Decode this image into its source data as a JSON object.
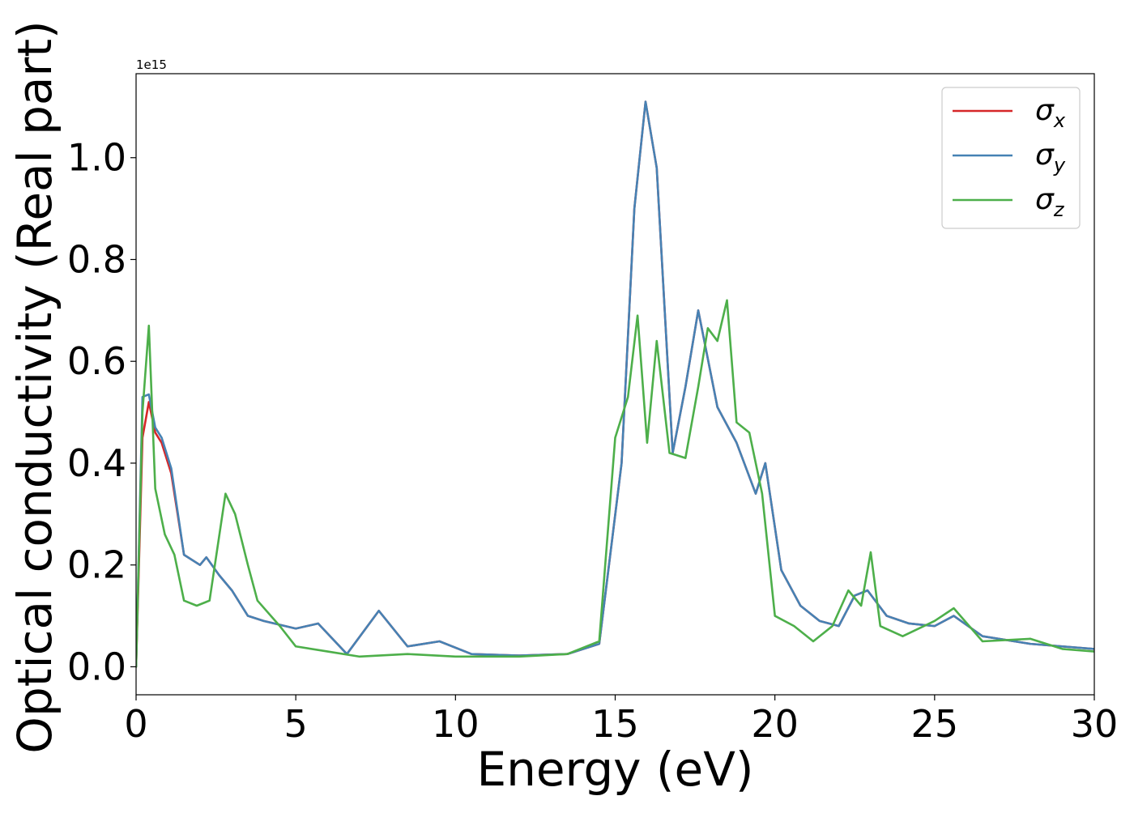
{
  "chart_data": {
    "type": "line",
    "title": "",
    "xlabel": "Energy (eV)",
    "ylabel": "Optical conductivity (Real part)",
    "y_offset_text": "1e15",
    "xlim": [
      0,
      30
    ],
    "ylim": [
      -0.055,
      1.165
    ],
    "y_scale_factor": 1000000000000000.0,
    "x_ticks": [
      0,
      5,
      10,
      15,
      20,
      25,
      30
    ],
    "x_tick_labels": [
      "0",
      "5",
      "10",
      "15",
      "20",
      "25",
      "30"
    ],
    "y_ticks": [
      0.0,
      0.2,
      0.4,
      0.6,
      0.8,
      1.0
    ],
    "y_tick_labels": [
      "0.0",
      "0.2",
      "0.4",
      "0.6",
      "0.8",
      "1.0"
    ],
    "grid": false,
    "legend": {
      "position": "top-right",
      "entries": [
        {
          "symbol": "σ",
          "sub": "x",
          "color": "#d62728"
        },
        {
          "symbol": "σ",
          "sub": "y",
          "color": "#4682b4"
        },
        {
          "symbol": "σ",
          "sub": "z",
          "color": "#4daf4a"
        }
      ]
    },
    "series": [
      {
        "key": "sigma_x",
        "color": "#d62728",
        "x": [
          0.0,
          0.2,
          0.4,
          0.6,
          0.8,
          1.1,
          1.5,
          2.0,
          2.2,
          2.6,
          3.0,
          3.5,
          4.0,
          5.0,
          5.7,
          6.6,
          7.6,
          8.5,
          9.5,
          10.5,
          12.0,
          13.5,
          14.5,
          15.2,
          15.6,
          15.95,
          16.3,
          16.8,
          17.2,
          17.6,
          18.2,
          18.8,
          19.4,
          19.7,
          20.2,
          20.8,
          21.4,
          22.0,
          22.5,
          22.9,
          23.5,
          24.2,
          25.0,
          25.6,
          26.5,
          28.0,
          30.0
        ],
        "y": [
          0.0,
          0.45,
          0.52,
          0.46,
          0.44,
          0.38,
          0.22,
          0.2,
          0.215,
          0.18,
          0.15,
          0.1,
          0.09,
          0.075,
          0.085,
          0.025,
          0.11,
          0.04,
          0.05,
          0.025,
          0.022,
          0.025,
          0.045,
          0.4,
          0.9,
          1.11,
          0.98,
          0.42,
          0.55,
          0.7,
          0.51,
          0.44,
          0.34,
          0.4,
          0.19,
          0.12,
          0.09,
          0.08,
          0.14,
          0.15,
          0.1,
          0.085,
          0.08,
          0.1,
          0.06,
          0.045,
          0.035
        ]
      },
      {
        "key": "sigma_y",
        "color": "#4682b4",
        "x": [
          0.0,
          0.2,
          0.4,
          0.6,
          0.8,
          1.1,
          1.5,
          2.0,
          2.2,
          2.6,
          3.0,
          3.5,
          4.0,
          5.0,
          5.7,
          6.6,
          7.6,
          8.5,
          9.5,
          10.5,
          12.0,
          13.5,
          14.5,
          15.2,
          15.6,
          15.95,
          16.3,
          16.8,
          17.2,
          17.6,
          18.2,
          18.8,
          19.4,
          19.7,
          20.2,
          20.8,
          21.4,
          22.0,
          22.5,
          22.9,
          23.5,
          24.2,
          25.0,
          25.6,
          26.5,
          28.0,
          30.0
        ],
        "y": [
          0.0,
          0.53,
          0.535,
          0.47,
          0.45,
          0.39,
          0.22,
          0.2,
          0.215,
          0.18,
          0.15,
          0.1,
          0.09,
          0.075,
          0.085,
          0.025,
          0.11,
          0.04,
          0.05,
          0.025,
          0.022,
          0.025,
          0.045,
          0.4,
          0.9,
          1.11,
          0.98,
          0.42,
          0.55,
          0.7,
          0.51,
          0.44,
          0.34,
          0.4,
          0.19,
          0.12,
          0.09,
          0.08,
          0.14,
          0.15,
          0.1,
          0.085,
          0.08,
          0.1,
          0.06,
          0.045,
          0.035
        ]
      },
      {
        "key": "sigma_z",
        "color": "#4daf4a",
        "x": [
          0.0,
          0.2,
          0.4,
          0.6,
          0.9,
          1.2,
          1.5,
          1.9,
          2.3,
          2.8,
          3.1,
          3.5,
          3.8,
          4.5,
          5.0,
          6.0,
          7.0,
          8.5,
          10.0,
          12.0,
          13.5,
          14.5,
          15.0,
          15.4,
          15.7,
          16.0,
          16.3,
          16.7,
          17.2,
          17.6,
          17.9,
          18.2,
          18.5,
          18.8,
          19.2,
          19.6,
          20.0,
          20.6,
          21.2,
          21.8,
          22.3,
          22.7,
          23.0,
          23.3,
          24.0,
          25.0,
          25.6,
          26.5,
          28.0,
          29.0,
          30.0
        ],
        "y": [
          0.0,
          0.5,
          0.67,
          0.35,
          0.26,
          0.22,
          0.13,
          0.12,
          0.13,
          0.34,
          0.3,
          0.2,
          0.13,
          0.08,
          0.04,
          0.03,
          0.02,
          0.025,
          0.02,
          0.02,
          0.025,
          0.05,
          0.45,
          0.53,
          0.69,
          0.44,
          0.64,
          0.42,
          0.41,
          0.55,
          0.665,
          0.64,
          0.72,
          0.48,
          0.46,
          0.34,
          0.1,
          0.08,
          0.05,
          0.08,
          0.15,
          0.12,
          0.225,
          0.08,
          0.06,
          0.09,
          0.115,
          0.05,
          0.055,
          0.035,
          0.03
        ]
      }
    ]
  }
}
